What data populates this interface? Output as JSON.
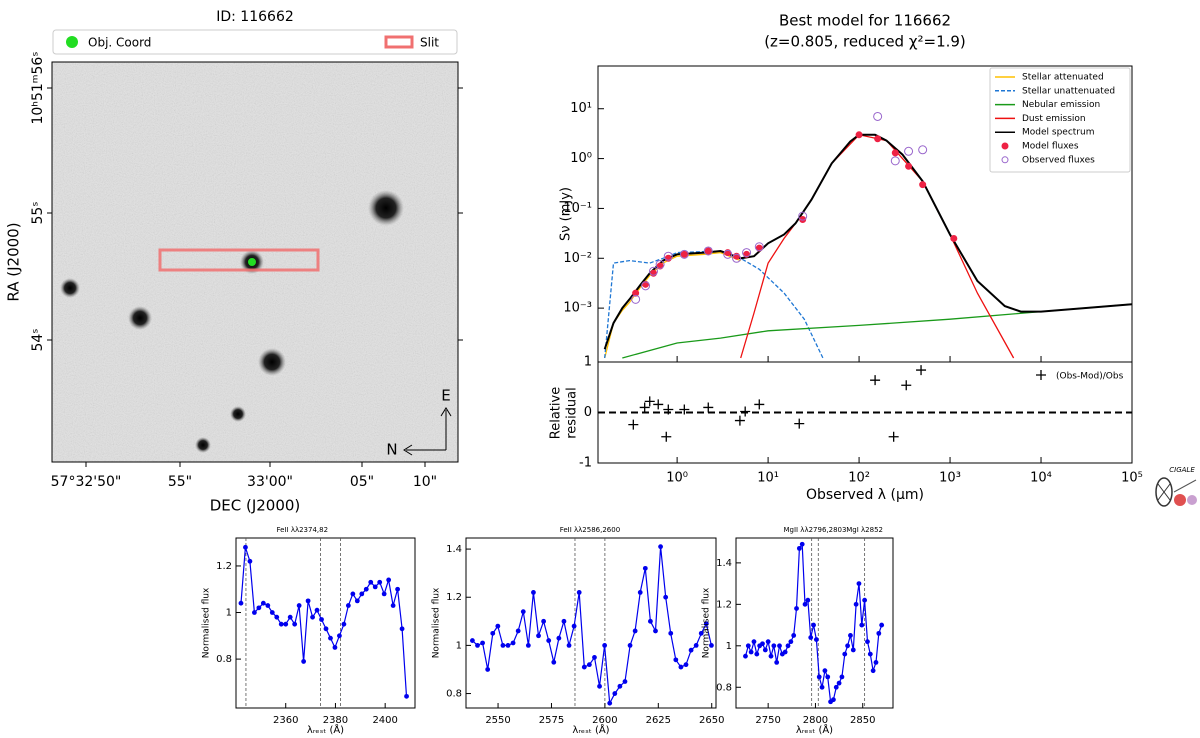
{
  "logo": "CIGALE",
  "chart_data": [
    {
      "type": "image",
      "title": "ID: 116662",
      "legend": [
        {
          "name": "Obj. Coord",
          "color": "#22dd22"
        },
        {
          "name": "Slit",
          "color": "#f07070"
        }
      ],
      "xlabel": "DEC (J2000)",
      "ylabel": "RA (J2000)",
      "xtick_labels": [
        "57°32'50\"",
        "55\"",
        "33'00\"",
        "05\"",
        "10\""
      ],
      "ytick_labels": [
        "10ʰ51ᵐ56ˢ",
        "55ˢ",
        "54ˢ"
      ],
      "compass": [
        "E",
        "N"
      ]
    },
    {
      "type": "sed",
      "title": "Best model for 116662",
      "subtitle": "(z=0.805, reduced χ²=1.9)",
      "ylabel": "Sν (mJy)",
      "xlog": true,
      "ylog": true,
      "xlim": [
        0.135,
        100000
      ],
      "ylim": [
        8.3e-05,
        72
      ],
      "xticks": [
        1,
        10,
        100,
        1000,
        10000,
        100000
      ],
      "yticks": [
        {
          "value": 0.001,
          "label": "10⁻³"
        },
        {
          "value": 0.01,
          "label": "10⁻²"
        },
        {
          "value": 0.1,
          "label": "10⁻¹"
        },
        {
          "value": 1,
          "label": "10⁰"
        },
        {
          "value": 10,
          "label": "10¹"
        }
      ],
      "legend": "upper right",
      "series": [
        {
          "name": "Stellar attenuated",
          "color": "#ffc000",
          "style": "line",
          "x": [
            0.16,
            0.2,
            0.25,
            0.3,
            0.4,
            0.5,
            0.7,
            1,
            2,
            3,
            5
          ],
          "values": [
            0.0001,
            0.0005,
            0.0009,
            0.0013,
            0.0027,
            0.0045,
            0.008,
            0.011,
            0.012,
            0.013,
            0.009
          ]
        },
        {
          "name": "Stellar unattenuated",
          "color": "#1f77d4",
          "style": "dashed",
          "x": [
            0.16,
            0.2,
            0.3,
            0.5,
            0.7,
            1,
            3,
            5,
            8,
            15,
            25,
            40
          ],
          "values": [
            0.0001,
            0.008,
            0.009,
            0.008,
            0.01,
            0.013,
            0.014,
            0.01,
            0.006,
            0.002,
            0.0006,
            0.0001
          ]
        },
        {
          "name": "Nebular emission",
          "color": "#1a9a1a",
          "style": "line",
          "x": [
            0.25,
            1,
            3,
            10,
            100,
            1000,
            10000,
            100000
          ],
          "values": [
            0.0001,
            0.0002,
            0.00025,
            0.00035,
            0.00045,
            0.0006,
            0.00085,
            0.0012
          ]
        },
        {
          "name": "Dust emission",
          "color": "#ee1111",
          "style": "line",
          "x": [
            5,
            7,
            10,
            15,
            20,
            30,
            50,
            100,
            200,
            500,
            1000,
            2000,
            5000
          ],
          "values": [
            0.0001,
            0.0008,
            0.008,
            0.025,
            0.05,
            0.15,
            0.8,
            3,
            2.3,
            0.35,
            0.03,
            0.002,
            0.0001
          ]
        },
        {
          "name": "Model spectrum",
          "color": "#000000",
          "style": "line",
          "x": [
            0.16,
            0.2,
            0.25,
            0.3,
            0.4,
            0.5,
            0.7,
            1,
            2,
            3,
            5,
            7,
            10,
            15,
            20,
            30,
            50,
            80,
            100,
            150,
            200,
            300,
            500,
            1000,
            2000,
            4000,
            6000,
            10000,
            30000,
            100000
          ],
          "values": [
            0.00015,
            0.0005,
            0.001,
            0.0015,
            0.003,
            0.005,
            0.009,
            0.012,
            0.013,
            0.014,
            0.01,
            0.011,
            0.02,
            0.03,
            0.05,
            0.15,
            0.8,
            2.2,
            3,
            3,
            2.3,
            1.2,
            0.35,
            0.03,
            0.0035,
            0.0011,
            0.00085,
            0.00085,
            0.001,
            0.0012
          ]
        },
        {
          "name": "Model fluxes",
          "color": "#ee2244",
          "style": "points",
          "x": [
            0.35,
            0.45,
            0.55,
            0.65,
            0.8,
            1.2,
            2.2,
            3.6,
            4.5,
            5.8,
            8,
            24,
            100,
            160,
            250,
            350,
            500,
            1100
          ],
          "values": [
            0.002,
            0.003,
            0.005,
            0.007,
            0.01,
            0.012,
            0.014,
            0.013,
            0.011,
            0.012,
            0.016,
            0.06,
            3,
            2.5,
            1.3,
            0.7,
            0.3,
            0.025
          ]
        },
        {
          "name": "Observed fluxes",
          "color": "#9966cc",
          "style": "open-points",
          "x": [
            0.35,
            0.45,
            0.55,
            0.65,
            0.8,
            1.2,
            2.2,
            3.6,
            4.5,
            5.8,
            8,
            24,
            160,
            250,
            350,
            500
          ],
          "values": [
            0.0015,
            0.0028,
            0.0055,
            0.0075,
            0.011,
            0.012,
            0.014,
            0.012,
            0.01,
            0.013,
            0.017,
            0.07,
            7,
            0.9,
            1.4,
            1.5
          ]
        }
      ]
    },
    {
      "type": "residual",
      "ylabel": [
        "Relative",
        "residual"
      ],
      "xlabel": "Observed λ (μm)",
      "xlog": true,
      "xlim": [
        0.135,
        100000
      ],
      "ylim": [
        -1,
        1
      ],
      "xticks": [
        {
          "value": 1,
          "label": "10⁰"
        },
        {
          "value": 10,
          "label": "10¹"
        },
        {
          "value": 100,
          "label": "10²"
        },
        {
          "value": 1000,
          "label": "10³"
        },
        {
          "value": 10000,
          "label": "10⁴"
        },
        {
          "value": 100000,
          "label": "10⁵"
        }
      ],
      "yticks": [
        -1,
        0,
        1
      ],
      "reference_line": 0,
      "series": [
        {
          "name": "(Obs-Mod)/Obs",
          "color": "#000000",
          "x": [
            0.33,
            0.44,
            0.5,
            0.62,
            0.76,
            0.8,
            1.2,
            2.2,
            4.9,
            5.6,
            8,
            22,
            150,
            240,
            330,
            480
          ],
          "values": [
            -0.24,
            0.1,
            0.22,
            0.16,
            -0.48,
            0.06,
            0.06,
            0.1,
            -0.16,
            0.02,
            0.16,
            -0.22,
            0.64,
            -0.48,
            0.54,
            0.84
          ]
        }
      ]
    },
    {
      "type": "spectrum",
      "titles": [
        "FeII λλ2374,82"
      ],
      "xlabel": "λᵣₑₛₜ (Å)",
      "ylabel": "Normalised flux",
      "color": "#0000ee",
      "xlim": [
        2340,
        2412
      ],
      "ylim": [
        0.59,
        1.32
      ],
      "xticks": [
        2360,
        2380,
        2400
      ],
      "yticks": [
        0.8,
        1.0,
        1.2
      ],
      "lines": [
        2344,
        2374,
        2382
      ],
      "x": [
        2342,
        2343.8,
        2345.6,
        2347.4,
        2349.2,
        2351,
        2352.8,
        2354.6,
        2356.4,
        2358.2,
        2360,
        2361.8,
        2363.6,
        2365.4,
        2367.2,
        2369,
        2370.8,
        2372.6,
        2374.4,
        2376.2,
        2378,
        2379.8,
        2381.6,
        2383.4,
        2385.2,
        2387,
        2388.8,
        2390.6,
        2392.4,
        2394.2,
        2396,
        2397.8,
        2399.6,
        2401.4,
        2403.2,
        2405,
        2406.8,
        2408.6
      ],
      "values": [
        1.04,
        1.28,
        1.22,
        1.0,
        1.02,
        1.04,
        1.03,
        1.0,
        0.98,
        0.95,
        0.95,
        0.98,
        0.95,
        1.03,
        0.79,
        1.05,
        0.98,
        1.01,
        0.97,
        0.93,
        0.89,
        0.85,
        0.9,
        0.95,
        1.03,
        1.08,
        1.05,
        1.08,
        1.1,
        1.13,
        1.11,
        1.13,
        1.08,
        1.14,
        1.03,
        1.1,
        0.93,
        0.64
      ]
    },
    {
      "type": "spectrum",
      "titles": [
        "FeII λλ2586,2600"
      ],
      "xlabel": "λᵣₑₛₜ (Å)",
      "ylabel": "Normalised flux",
      "color": "#0000ee",
      "xlim": [
        2535,
        2652
      ],
      "ylim": [
        0.74,
        1.446
      ],
      "xticks": [
        2550,
        2575,
        2600,
        2625,
        2650
      ],
      "yticks": [
        0.8,
        1.0,
        1.2,
        1.4
      ],
      "lines": [
        2586,
        2600
      ],
      "x": [
        2538,
        2540.38,
        2542.76,
        2545.14,
        2547.52,
        2549.9,
        2552.28,
        2554.66,
        2557.04,
        2559.42,
        2561.8,
        2564.18,
        2566.56,
        2568.94,
        2571.32,
        2573.7,
        2576.08,
        2578.46,
        2580.84,
        2583.22,
        2585.6,
        2587.98,
        2590.36,
        2592.74,
        2595.12,
        2597.5,
        2599.88,
        2602.26,
        2604.64,
        2607.02,
        2609.4,
        2611.78,
        2614.16,
        2616.54,
        2618.92,
        2621.3,
        2623.68,
        2626.06,
        2628.44,
        2630.82,
        2633.2,
        2635.58,
        2637.96,
        2640.34,
        2642.72,
        2645.1,
        2647.48,
        2649.86
      ],
      "values": [
        1.02,
        1.0,
        1.01,
        0.9,
        1.05,
        1.08,
        1.0,
        1.0,
        1.01,
        1.06,
        1.14,
        1.0,
        1.22,
        1.04,
        1.1,
        1.02,
        0.93,
        1.03,
        1.1,
        1.0,
        1.08,
        1.22,
        0.91,
        0.92,
        0.95,
        0.83,
        1.0,
        0.76,
        0.8,
        0.83,
        0.85,
        1.0,
        1.06,
        1.22,
        1.32,
        1.1,
        1.06,
        1.41,
        1.2,
        1.05,
        0.94,
        0.91,
        0.92,
        0.98,
        1.0,
        1.05,
        1.09,
        1.0
      ]
    },
    {
      "type": "spectrum",
      "titles": [
        "MgII λλ2796,2803",
        "MgI λ2852"
      ],
      "xlabel": "λᵣₑₛₜ (Å)",
      "ylabel": "Normalised flux",
      "color": "#0000ee",
      "xlim": [
        2716,
        2882
      ],
      "ylim": [
        0.7,
        1.52
      ],
      "xticks": [
        2750,
        2800,
        2850
      ],
      "yticks": [
        0.8,
        1.0,
        1.2,
        1.4
      ],
      "lines": [
        2796,
        2803,
        2852
      ],
      "x": [
        2726,
        2729,
        2732,
        2735,
        2738,
        2741,
        2744,
        2747,
        2750,
        2753,
        2756,
        2759,
        2762,
        2765,
        2768,
        2771,
        2774,
        2777,
        2780,
        2783,
        2786,
        2789,
        2792,
        2795,
        2798,
        2801,
        2804,
        2807,
        2810,
        2813,
        2816,
        2819,
        2822,
        2825,
        2828,
        2831,
        2834,
        2837,
        2840,
        2843,
        2846,
        2849,
        2852,
        2855,
        2858,
        2861,
        2864,
        2867,
        2870
      ],
      "values": [
        0.95,
        1.0,
        0.97,
        1.02,
        0.96,
        1.0,
        1.01,
        0.98,
        1.02,
        0.95,
        1.0,
        0.92,
        1.0,
        0.96,
        0.97,
        1.0,
        1.02,
        1.05,
        1.18,
        1.47,
        1.49,
        1.2,
        1.22,
        1.04,
        1.1,
        1.03,
        0.85,
        0.8,
        0.88,
        0.85,
        0.73,
        0.74,
        0.8,
        0.82,
        0.85,
        0.96,
        1.0,
        1.05,
        0.98,
        1.2,
        1.3,
        1.1,
        1.22,
        1.02,
        0.96,
        0.88,
        0.92,
        1.06,
        1.1
      ]
    }
  ]
}
